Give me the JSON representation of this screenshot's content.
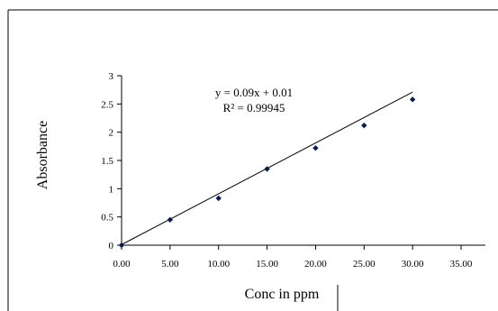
{
  "chart_data": {
    "type": "scatter",
    "xlabel": "Conc in ppm",
    "ylabel": "Absorbance",
    "xlim": [
      0,
      35
    ],
    "ylim": [
      0,
      3
    ],
    "x_ticks": [
      "0.00",
      "5.00",
      "10.00",
      "15.00",
      "20.00",
      "25.00",
      "30.00",
      "35.00"
    ],
    "y_ticks": [
      "0",
      "0.5",
      "1",
      "1.5",
      "2",
      "2.5",
      "3"
    ],
    "x_tick_values": [
      0,
      5,
      10,
      15,
      20,
      25,
      30,
      35
    ],
    "y_tick_values": [
      0,
      0.5,
      1,
      1.5,
      2,
      2.5,
      3
    ],
    "series": [
      {
        "x": [
          0,
          5,
          10,
          15,
          20,
          25,
          30
        ],
        "y": [
          0,
          0.45,
          0.83,
          1.35,
          1.72,
          2.12,
          2.58
        ]
      }
    ],
    "trendline": {
      "type": "linear",
      "slope": 0.09,
      "intercept": 0.01,
      "x_range": [
        0,
        30
      ]
    },
    "annotations": {
      "equation": "y = 0.09x + 0.01",
      "r_squared": "R² = 0.99945"
    },
    "grid": false,
    "legend": "none",
    "colors": {
      "marker": "#0d1b4a",
      "line": "#000000",
      "axis": "#000000"
    }
  }
}
